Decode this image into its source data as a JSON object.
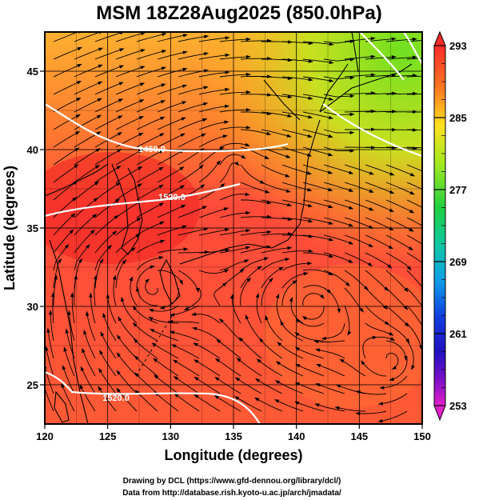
{
  "title": "MSM 18Z28Aug2025 (850.0hPa)",
  "x_axis": {
    "label": "Longitude (degrees)",
    "range": [
      120,
      150
    ],
    "ticks": [
      "120",
      "125",
      "130",
      "135",
      "140",
      "145",
      "150"
    ]
  },
  "y_axis": {
    "label": "Latitude  (degrees)",
    "range": [
      22.5,
      47.5
    ],
    "ticks": [
      "25",
      "30",
      "35",
      "40",
      "45"
    ]
  },
  "colorbar": {
    "min": 253,
    "max": 293,
    "ticks": [
      "293",
      "285",
      "277",
      "269",
      "261",
      "253"
    ]
  },
  "contour_labels": [
    "1460.0",
    "1520.0",
    "1520.0"
  ],
  "credits": {
    "line1": "Drawing by DCL (https://www.gfd-dennou.org/library/dcl/)",
    "line2": "Data from http://database.rish.kyoto-u.ac.jp/arch/jmadata/"
  },
  "colors": {
    "warm": "#ff4a3a",
    "hot": "#ee2020",
    "mid": "#ff9a20",
    "yellow": "#ffd020",
    "green": "#70e020",
    "stream": "#000000",
    "contour": "#ffffff"
  }
}
